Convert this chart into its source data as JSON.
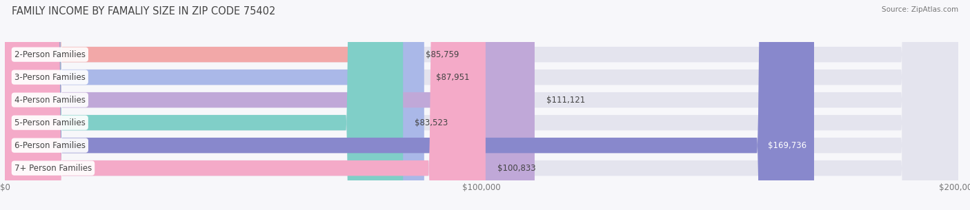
{
  "title": "FAMILY INCOME BY FAMALIY SIZE IN ZIP CODE 75402",
  "source": "Source: ZipAtlas.com",
  "categories": [
    "2-Person Families",
    "3-Person Families",
    "4-Person Families",
    "5-Person Families",
    "6-Person Families",
    "7+ Person Families"
  ],
  "values": [
    85759,
    87951,
    111121,
    83523,
    169736,
    100833
  ],
  "labels": [
    "$85,759",
    "$87,951",
    "$111,121",
    "$83,523",
    "$169,736",
    "$100,833"
  ],
  "bar_colors": [
    "#f2a8a8",
    "#aab8e8",
    "#c0a8d8",
    "#80cfc8",
    "#8888cc",
    "#f4aac8"
  ],
  "bar_bg_color": "#e4e4ee",
  "label_colors": [
    "#555555",
    "#555555",
    "#555555",
    "#555555",
    "#ffffff",
    "#555555"
  ],
  "xmax": 200000,
  "xticks": [
    0,
    100000,
    200000
  ],
  "xtick_labels": [
    "$0",
    "$100,000",
    "$200,000"
  ],
  "background_color": "#f7f7fa",
  "title_fontsize": 10.5,
  "bar_height": 0.68,
  "bar_label_fontsize": 8.5,
  "category_fontsize": 8.5,
  "rounding_size": 12000
}
